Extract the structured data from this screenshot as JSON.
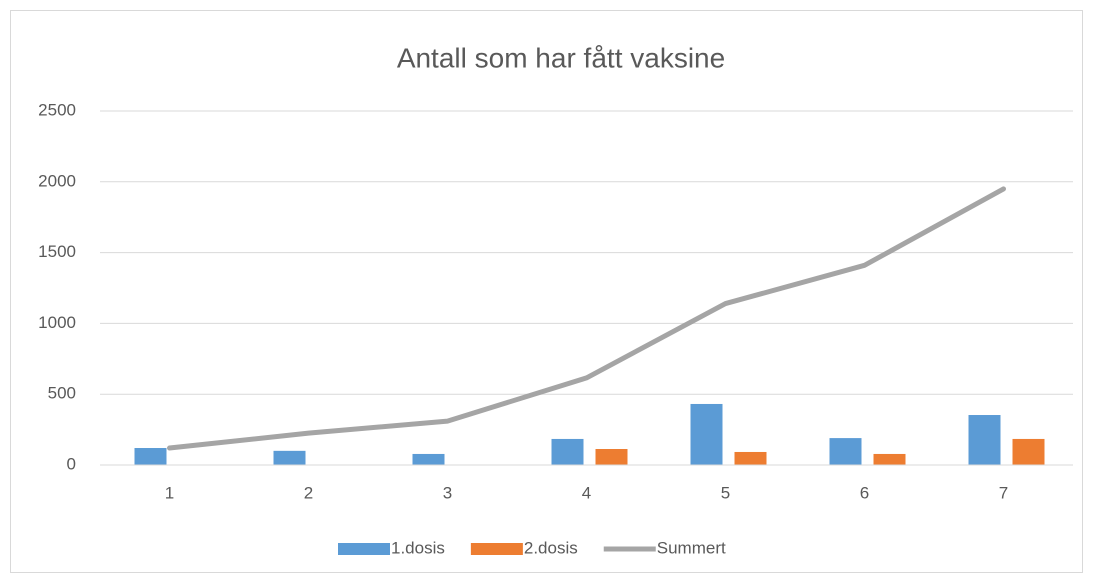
{
  "chart_data": {
    "type": "bar-line",
    "title": "Antall som har fått vaksine",
    "categories": [
      "1",
      "2",
      "3",
      "4",
      "5",
      "6",
      "7"
    ],
    "series": [
      {
        "name": "1.dosis",
        "color": "#5b9bd5",
        "type": "bar",
        "values": [
          120,
          100,
          78,
          184,
          431,
          190,
          353
        ]
      },
      {
        "name": "2.dosis",
        "color": "#ed7d31",
        "type": "bar",
        "values": [
          0,
          0,
          0,
          113,
          92,
          78,
          184
        ]
      },
      {
        "name": "Summert",
        "color": "#a5a5a5",
        "type": "line",
        "values": [
          120,
          225,
          310,
          615,
          1140,
          1410,
          1950
        ]
      }
    ],
    "ylim": [
      0,
      2500
    ],
    "yticks": [
      0,
      500,
      1000,
      1500,
      2000,
      2500
    ],
    "grid": true,
    "legend": "bottom"
  }
}
